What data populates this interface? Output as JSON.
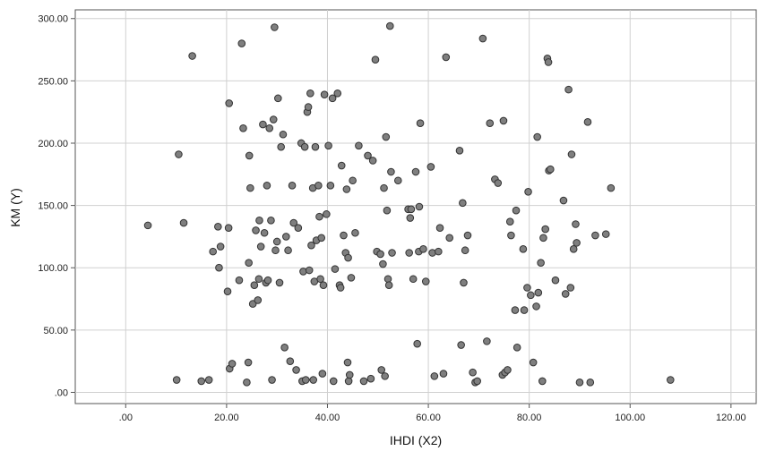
{
  "chart_data": {
    "type": "scatter",
    "xlabel": "IHDI (X2)",
    "ylabel": "KM (Y)",
    "xlim": [
      -10,
      125
    ],
    "ylim": [
      -9,
      307
    ],
    "x_ticks": [
      0,
      20,
      40,
      60,
      80,
      100,
      120
    ],
    "x_tick_labels": [
      ".00",
      "20.00",
      "40.00",
      "60.00",
      "80.00",
      "100.00",
      "120.00"
    ],
    "y_ticks": [
      0,
      50,
      100,
      150,
      200,
      250,
      300
    ],
    "y_tick_labels": [
      ".00",
      "50.00",
      "100.00",
      "150.00",
      "200.00",
      "250.00",
      "300.00"
    ],
    "grid": true,
    "point_fill": "#7f7f7f",
    "point_stroke": "#333333",
    "points": [
      [
        4.4,
        134
      ],
      [
        10.1,
        10
      ],
      [
        10.5,
        191
      ],
      [
        11.5,
        136
      ],
      [
        13.2,
        270
      ],
      [
        15,
        9
      ],
      [
        16.5,
        10
      ],
      [
        17.3,
        113
      ],
      [
        18.3,
        133
      ],
      [
        18.5,
        100
      ],
      [
        18.8,
        117
      ],
      [
        20.2,
        81
      ],
      [
        20.4,
        132
      ],
      [
        20.5,
        232
      ],
      [
        20.6,
        19
      ],
      [
        21.1,
        23
      ],
      [
        22.5,
        90
      ],
      [
        23,
        280
      ],
      [
        23.3,
        212
      ],
      [
        24,
        8
      ],
      [
        24.3,
        24
      ],
      [
        24.4,
        104
      ],
      [
        24.5,
        190
      ],
      [
        24.7,
        164
      ],
      [
        25.2,
        71
      ],
      [
        25.5,
        86
      ],
      [
        25.8,
        130
      ],
      [
        26.2,
        74
      ],
      [
        26.4,
        91
      ],
      [
        26.5,
        138
      ],
      [
        26.8,
        117
      ],
      [
        27.2,
        215
      ],
      [
        27.5,
        128
      ],
      [
        27.8,
        88
      ],
      [
        28,
        166
      ],
      [
        28.2,
        90
      ],
      [
        28.5,
        212
      ],
      [
        28.8,
        138
      ],
      [
        29,
        10
      ],
      [
        29.3,
        219
      ],
      [
        29.5,
        293
      ],
      [
        29.7,
        114
      ],
      [
        30,
        121
      ],
      [
        30.2,
        236
      ],
      [
        30.5,
        88
      ],
      [
        30.8,
        197
      ],
      [
        31.2,
        207
      ],
      [
        31.5,
        36
      ],
      [
        31.8,
        125
      ],
      [
        32.2,
        114
      ],
      [
        32.6,
        25
      ],
      [
        33,
        166
      ],
      [
        33.3,
        136
      ],
      [
        33.8,
        18
      ],
      [
        34.2,
        132
      ],
      [
        34.8,
        200
      ],
      [
        35,
        9
      ],
      [
        35.2,
        97
      ],
      [
        35.5,
        197
      ],
      [
        35.7,
        10
      ],
      [
        36,
        225
      ],
      [
        36.2,
        229
      ],
      [
        36.4,
        98
      ],
      [
        36.6,
        240
      ],
      [
        36.8,
        118
      ],
      [
        37.1,
        164
      ],
      [
        37.2,
        10
      ],
      [
        37.4,
        89
      ],
      [
        37.6,
        197
      ],
      [
        37.8,
        122
      ],
      [
        38.2,
        166
      ],
      [
        38.4,
        141
      ],
      [
        38.6,
        91
      ],
      [
        38.8,
        124
      ],
      [
        39,
        15
      ],
      [
        39.2,
        86
      ],
      [
        39.4,
        239
      ],
      [
        39.8,
        143
      ],
      [
        40.2,
        198
      ],
      [
        40.6,
        166
      ],
      [
        41,
        236
      ],
      [
        41.2,
        9
      ],
      [
        41.5,
        99
      ],
      [
        42,
        240
      ],
      [
        42.4,
        86
      ],
      [
        42.6,
        84
      ],
      [
        42.8,
        182
      ],
      [
        43.2,
        126
      ],
      [
        43.6,
        112
      ],
      [
        43.8,
        163
      ],
      [
        44,
        24
      ],
      [
        44.1,
        108
      ],
      [
        44.2,
        9
      ],
      [
        44.4,
        14
      ],
      [
        44.7,
        92
      ],
      [
        45,
        170
      ],
      [
        45.5,
        128
      ],
      [
        46.2,
        198
      ],
      [
        47.2,
        9
      ],
      [
        48,
        190
      ],
      [
        48.6,
        11
      ],
      [
        49,
        186
      ],
      [
        49.5,
        267
      ],
      [
        49.8,
        113
      ],
      [
        50.5,
        111
      ],
      [
        50.7,
        18
      ],
      [
        51,
        103
      ],
      [
        51.2,
        164
      ],
      [
        51.4,
        13
      ],
      [
        51.6,
        205
      ],
      [
        51.8,
        146
      ],
      [
        52,
        91
      ],
      [
        52.2,
        86
      ],
      [
        52.4,
        294
      ],
      [
        52.6,
        177
      ],
      [
        52.8,
        112
      ],
      [
        54,
        170
      ],
      [
        56,
        147
      ],
      [
        56.2,
        112
      ],
      [
        56.4,
        140
      ],
      [
        56.6,
        147
      ],
      [
        57,
        91
      ],
      [
        57.5,
        177
      ],
      [
        57.8,
        39
      ],
      [
        58.1,
        113
      ],
      [
        58.2,
        149
      ],
      [
        58.4,
        216
      ],
      [
        59,
        115
      ],
      [
        59.5,
        89
      ],
      [
        60.5,
        181
      ],
      [
        60.8,
        112
      ],
      [
        61.2,
        13
      ],
      [
        62,
        113
      ],
      [
        62.3,
        132
      ],
      [
        63,
        15
      ],
      [
        63.5,
        269
      ],
      [
        64.2,
        124
      ],
      [
        66.2,
        194
      ],
      [
        66.5,
        38
      ],
      [
        66.8,
        152
      ],
      [
        67,
        88
      ],
      [
        67.3,
        114
      ],
      [
        67.8,
        126
      ],
      [
        68.8,
        16
      ],
      [
        69.3,
        8
      ],
      [
        69.7,
        9
      ],
      [
        70.8,
        284
      ],
      [
        71.6,
        41
      ],
      [
        72.2,
        216
      ],
      [
        73.2,
        171
      ],
      [
        73.8,
        168
      ],
      [
        74.7,
        14
      ],
      [
        74.9,
        218
      ],
      [
        75.2,
        16
      ],
      [
        75.7,
        18
      ],
      [
        76.2,
        137
      ],
      [
        76.4,
        126
      ],
      [
        77.2,
        66
      ],
      [
        77.4,
        146
      ],
      [
        77.6,
        36
      ],
      [
        78.8,
        115
      ],
      [
        79,
        66
      ],
      [
        79.6,
        84
      ],
      [
        79.8,
        161
      ],
      [
        80.3,
        78
      ],
      [
        80.8,
        24
      ],
      [
        81.4,
        69
      ],
      [
        81.6,
        205
      ],
      [
        81.8,
        80
      ],
      [
        82.3,
        104
      ],
      [
        82.6,
        9
      ],
      [
        82.8,
        124
      ],
      [
        83.2,
        131
      ],
      [
        83.6,
        268
      ],
      [
        83.8,
        265
      ],
      [
        83.9,
        178
      ],
      [
        84.2,
        179
      ],
      [
        85.2,
        90
      ],
      [
        86.8,
        154
      ],
      [
        87.2,
        79
      ],
      [
        87.8,
        243
      ],
      [
        88.2,
        84
      ],
      [
        88.4,
        191
      ],
      [
        88.8,
        115
      ],
      [
        89.2,
        135
      ],
      [
        89.4,
        120
      ],
      [
        90,
        8
      ],
      [
        91.6,
        217
      ],
      [
        92.1,
        8
      ],
      [
        93.1,
        126
      ],
      [
        95.2,
        127
      ],
      [
        96.2,
        164
      ],
      [
        108,
        10
      ]
    ]
  }
}
